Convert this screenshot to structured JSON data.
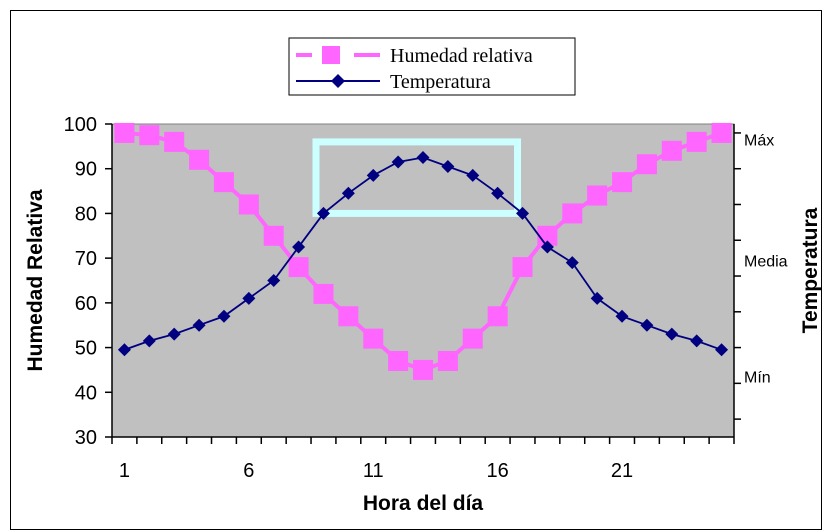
{
  "chart_data": {
    "type": "line",
    "xlabel": "Hora del día",
    "ylabel": "Humedad Relativa",
    "y2label": "Temperatura",
    "x": [
      1,
      2,
      3,
      4,
      5,
      6,
      7,
      8,
      9,
      10,
      11,
      12,
      13,
      14,
      15,
      16,
      17,
      18,
      19,
      20,
      21,
      22,
      23,
      24,
      25
    ],
    "x_tick_labels": [
      "1",
      "6",
      "11",
      "16",
      "21"
    ],
    "x_tick_values": [
      1,
      6,
      11,
      16,
      21
    ],
    "ylim": [
      30,
      100
    ],
    "y_tick_values": [
      30,
      40,
      50,
      60,
      70,
      80,
      90,
      100
    ],
    "y2_tick_labels": [
      "Máx",
      "Media",
      "Mín"
    ],
    "y2_tick_label_values": [
      96.5,
      69.5,
      43.5
    ],
    "y2_tick_values": [
      34,
      42,
      50,
      58,
      66,
      74,
      82,
      90,
      98
    ],
    "grid": false,
    "plot_background": "#c0c0c0",
    "legend_position": "top-center",
    "series": [
      {
        "name": "Humedad relativa",
        "color": "#ff66ff",
        "marker": "square",
        "values": [
          98,
          97.5,
          96,
          92,
          87,
          82,
          75,
          68,
          62,
          57,
          52,
          47,
          45,
          47,
          52,
          57,
          68,
          75,
          80,
          84,
          87,
          91,
          94,
          96,
          98
        ]
      },
      {
        "name": "Temperatura",
        "color": "#000080",
        "marker": "diamond",
        "values": [
          49.5,
          51.5,
          53,
          55,
          57,
          61,
          65,
          72.5,
          80,
          84.5,
          88.5,
          91.5,
          92.5,
          90.5,
          88.5,
          84.5,
          80,
          72.5,
          69,
          61,
          57,
          55,
          53,
          51.5,
          49.5
        ]
      }
    ],
    "highlight": {
      "x_range": [
        8.7,
        16.8
      ],
      "y_range": [
        80,
        96
      ],
      "color": "#ccffff"
    }
  }
}
